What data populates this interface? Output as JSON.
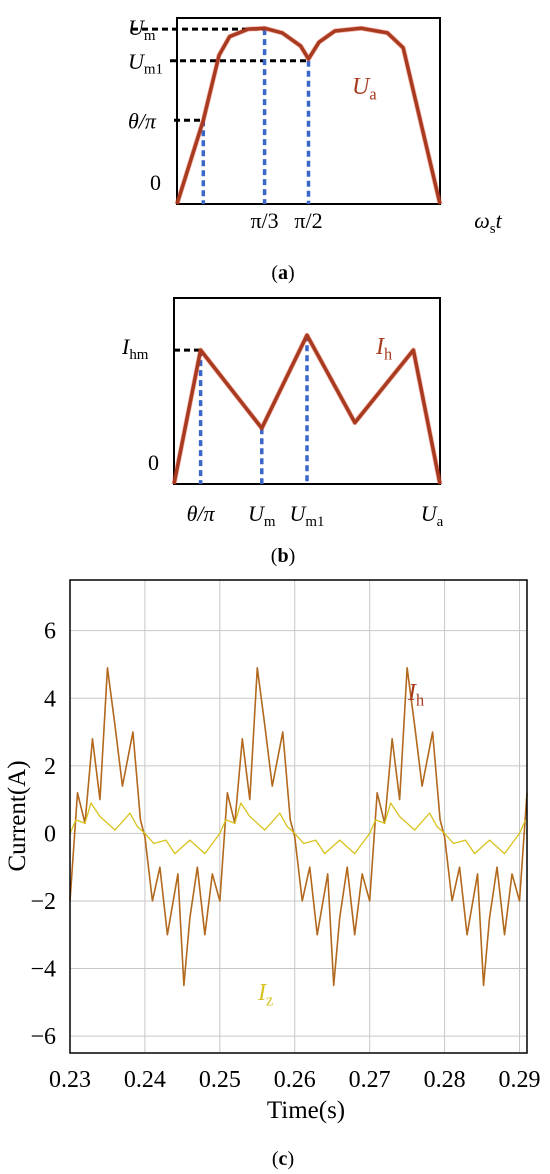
{
  "colors": {
    "axis": "#000000",
    "curve": "#a83a1f",
    "curve_edge": "#e02a14",
    "dash_black": "#000000",
    "dash_blue": "#3a66c8",
    "grid": "#c8c8c8",
    "ih_trace": "#b2681d",
    "iz_trace": "#d8c21e",
    "label_red": "#a83a1f",
    "label_yellow": "#d8c21e"
  },
  "chart_data": [
    {
      "type": "line",
      "panel_label": "a",
      "xlabel_main": "ω",
      "xlabel_sub": "s",
      "xlabel_tail": "t",
      "x_ticks": [
        "π/3",
        "π/2"
      ],
      "y_ticks": [
        {
          "main": "U",
          "sub": "m"
        },
        {
          "main": "U",
          "sub": "m1"
        },
        {
          "main": "θ/π",
          "sub": ""
        },
        {
          "main": "0",
          "sub": ""
        }
      ],
      "series_label": {
        "main": "U",
        "sub": "a"
      },
      "xlim": [
        0,
        1
      ],
      "ylim": [
        0,
        1
      ],
      "y_levels": {
        "Um": 0.94,
        "Um1": 0.77,
        "theta": 0.45
      },
      "x_marks": {
        "theta": 0.1,
        "pi3": 0.333,
        "pi2": 0.5
      },
      "curve": [
        [
          0,
          0
        ],
        [
          0.1,
          0.45
        ],
        [
          0.16,
          0.8
        ],
        [
          0.2,
          0.9
        ],
        [
          0.27,
          0.94
        ],
        [
          0.333,
          0.945
        ],
        [
          0.4,
          0.92
        ],
        [
          0.47,
          0.85
        ],
        [
          0.5,
          0.78
        ],
        [
          0.54,
          0.87
        ],
        [
          0.6,
          0.93
        ],
        [
          0.7,
          0.945
        ],
        [
          0.8,
          0.92
        ],
        [
          0.86,
          0.84
        ],
        [
          1,
          0
        ]
      ]
    },
    {
      "type": "line",
      "panel_label": "b",
      "x_ticks": [
        {
          "main": "θ/π",
          "sub": ""
        },
        {
          "main": "U",
          "sub": "m"
        },
        {
          "main": "U",
          "sub": "m1"
        },
        {
          "main": "U",
          "sub": "a"
        }
      ],
      "y_ticks": [
        {
          "main": "I",
          "sub": "hm"
        },
        {
          "main": "0",
          "sub": ""
        }
      ],
      "series_label": {
        "main": "I",
        "sub": "h"
      },
      "xlim": [
        0,
        1
      ],
      "ylim": [
        0,
        1
      ],
      "y_levels": {
        "Ihm": 0.72
      },
      "x_marks": {
        "theta": 0.1,
        "Um": 0.33,
        "Um1": 0.5
      },
      "curve": [
        [
          0,
          0
        ],
        [
          0.1,
          0.72
        ],
        [
          0.33,
          0.3
        ],
        [
          0.5,
          0.8
        ],
        [
          0.68,
          0.33
        ],
        [
          0.9,
          0.72
        ],
        [
          1,
          0
        ]
      ]
    },
    {
      "type": "line",
      "panel_label": "c",
      "xlabel": "Time(s)",
      "ylabel": "Current(A)",
      "xlim": [
        0.23,
        0.291
      ],
      "ylim": [
        -6.5,
        7.5
      ],
      "x_ticks": [
        "0.23",
        "0.24",
        "0.25",
        "0.26",
        "0.27",
        "0.28",
        "0.29"
      ],
      "x_tick_values": [
        0.23,
        0.24,
        0.25,
        0.26,
        0.27,
        0.28,
        0.29
      ],
      "y_ticks": [
        "6",
        "4",
        "2",
        "0",
        "−2",
        "−4",
        "−6"
      ],
      "y_tick_values": [
        6,
        4,
        2,
        0,
        -2,
        -4,
        -6
      ],
      "grid": true,
      "period": 0.02,
      "series": [
        {
          "name_main": "I",
          "name_sub": "h",
          "wave": [
            [
              0,
              -2
            ],
            [
              0.05,
              1.2
            ],
            [
              0.1,
              0.3
            ],
            [
              0.15,
              2.8
            ],
            [
              0.2,
              1.0
            ],
            [
              0.25,
              4.9
            ],
            [
              0.3,
              3.2
            ],
            [
              0.35,
              1.4
            ],
            [
              0.42,
              3.0
            ],
            [
              0.47,
              0.4
            ],
            [
              0.5,
              -0.1
            ],
            [
              0.55,
              -2.0
            ],
            [
              0.6,
              -1.0
            ],
            [
              0.65,
              -3.0
            ],
            [
              0.72,
              -1.2
            ],
            [
              0.76,
              -4.5
            ],
            [
              0.8,
              -2.5
            ],
            [
              0.85,
              -1.0
            ],
            [
              0.9,
              -3.0
            ],
            [
              0.95,
              -1.2
            ],
            [
              1,
              -2
            ]
          ]
        },
        {
          "name_main": "I",
          "name_sub": "z",
          "wave": [
            [
              0,
              0
            ],
            [
              0.04,
              0.4
            ],
            [
              0.1,
              0.3
            ],
            [
              0.14,
              0.9
            ],
            [
              0.2,
              0.5
            ],
            [
              0.3,
              0.1
            ],
            [
              0.4,
              0.6
            ],
            [
              0.45,
              0.2
            ],
            [
              0.5,
              0
            ],
            [
              0.56,
              -0.3
            ],
            [
              0.64,
              -0.2
            ],
            [
              0.7,
              -0.6
            ],
            [
              0.8,
              -0.2
            ],
            [
              0.9,
              -0.6
            ],
            [
              1,
              0
            ]
          ]
        }
      ]
    }
  ],
  "captions": [
    "(a)",
    "(b)",
    "(c)"
  ]
}
